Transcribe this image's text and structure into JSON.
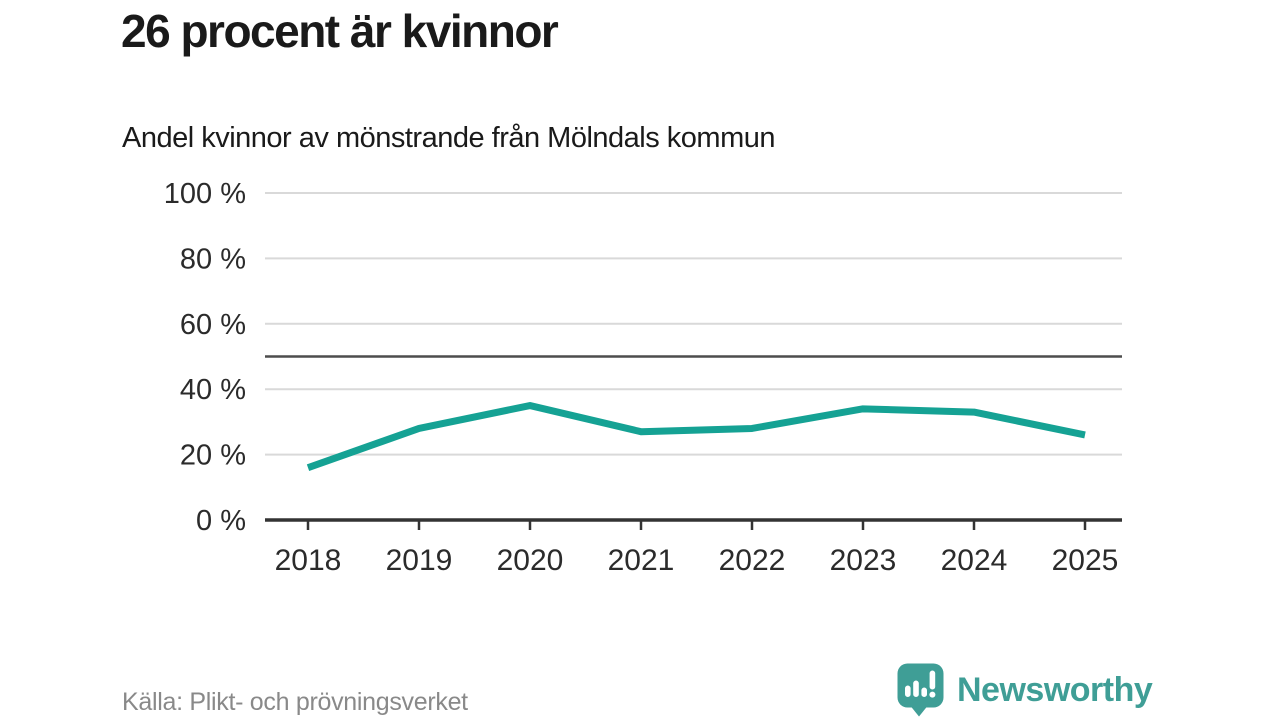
{
  "header": {
    "title": "26 procent är kvinnor",
    "subtitle": "Andel kvinnor av mönstrande från Mölndals kommun"
  },
  "chart_data": {
    "type": "line",
    "title": "Andel kvinnor av mönstrande från Mölndals kommun",
    "categories": [
      "2018",
      "2019",
      "2020",
      "2021",
      "2022",
      "2023",
      "2024",
      "2025"
    ],
    "series": [
      {
        "name": "Andel kvinnor av mönstrande",
        "values": [
          16,
          28,
          35,
          27,
          28,
          34,
          33,
          26
        ]
      }
    ],
    "unit": "%",
    "ylim": [
      0,
      100
    ],
    "y_ticks": [
      {
        "value": 0,
        "label": "0 %"
      },
      {
        "value": 20,
        "label": "20 %"
      },
      {
        "value": 40,
        "label": "40 %"
      },
      {
        "value": 60,
        "label": "60 %"
      },
      {
        "value": 80,
        "label": "80 %"
      },
      {
        "value": 100,
        "label": "100 %"
      }
    ],
    "reference_line": 50,
    "grid": true,
    "legend": "none"
  },
  "colors": {
    "line": "#15a294",
    "brand": "#3f9e96",
    "grid": "#d9d9d9",
    "axis": "#333333",
    "reference": "#4d4d4d",
    "tick_text": "#2b2b2b",
    "muted_text": "#898989"
  },
  "footer": {
    "source": "Källa: Plikt- och prövningsverket",
    "brand": "Newsworthy"
  }
}
